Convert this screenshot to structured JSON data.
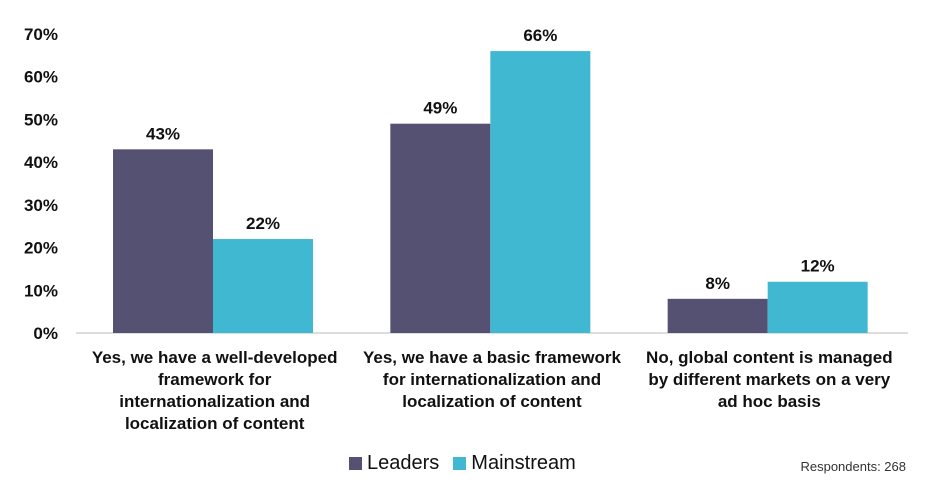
{
  "chart_data": {
    "type": "bar",
    "categories": [
      "Yes, we have a well-developed\nframework for\ninternationalization and\nlocalization of content",
      "Yes, we have a basic framework\nfor internationalization and\nlocalization of content",
      "No, global content is managed\nby different markets on a very\nad hoc basis"
    ],
    "series": [
      {
        "name": "Leaders",
        "values": [
          43,
          49,
          8
        ],
        "labels": [
          "43%",
          "49%",
          "8%"
        ],
        "color": "#545172"
      },
      {
        "name": "Mainstream",
        "values": [
          22,
          66,
          12
        ],
        "labels": [
          "22%",
          "66%",
          "12%"
        ],
        "color": "#41B8D2"
      }
    ],
    "ylim": [
      0,
      70
    ],
    "yticks": [
      0,
      10,
      20,
      30,
      40,
      50,
      60,
      70
    ],
    "ytick_labels": [
      "0%",
      "10%",
      "20%",
      "30%",
      "40%",
      "50%",
      "60%",
      "70%"
    ],
    "grid": false,
    "legend_position": "bottom-center",
    "note": "Respondents: 268"
  }
}
